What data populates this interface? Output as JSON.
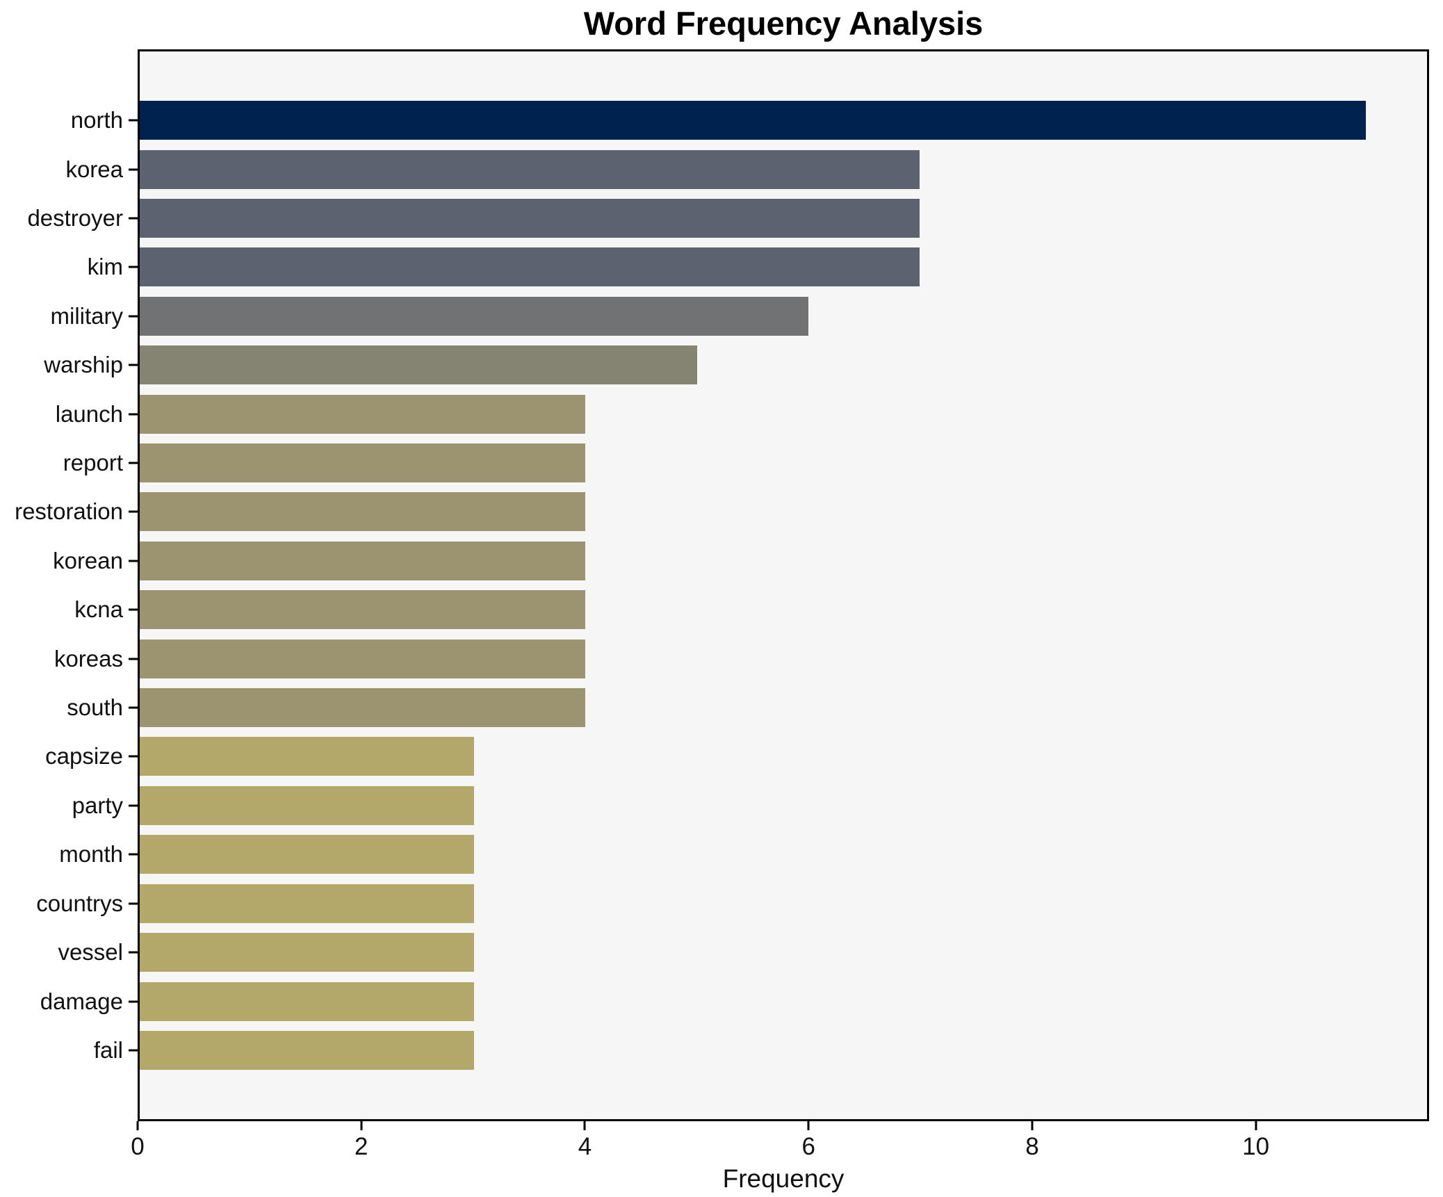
{
  "chart_data": {
    "type": "bar",
    "orientation": "horizontal",
    "title": "Word Frequency Analysis",
    "xlabel": "Frequency",
    "ylabel": "",
    "categories": [
      "north",
      "korea",
      "destroyer",
      "kim",
      "military",
      "warship",
      "launch",
      "report",
      "restoration",
      "korean",
      "kcna",
      "koreas",
      "south",
      "capsize",
      "party",
      "month",
      "countrys",
      "vessel",
      "damage",
      "fail"
    ],
    "values": [
      11,
      7,
      7,
      7,
      6,
      5,
      4,
      4,
      4,
      4,
      4,
      4,
      4,
      3,
      3,
      3,
      3,
      3,
      3,
      3
    ],
    "colors": [
      "#00224e",
      "#5d6270",
      "#5d6270",
      "#5d6270",
      "#717274",
      "#858371",
      "#9c9470",
      "#9c9470",
      "#9c9470",
      "#9c9470",
      "#9c9470",
      "#9c9470",
      "#9c9470",
      "#b3a76a",
      "#b3a76a",
      "#b3a76a",
      "#b3a76a",
      "#b3a76a",
      "#b3a76a",
      "#b3a76a"
    ],
    "xlim": [
      0,
      11.55
    ],
    "xticks": [
      0,
      2,
      4,
      6,
      8,
      10
    ],
    "grid": false,
    "legend": false,
    "plot_background": "#f5f6f5",
    "figure_background": "#ffffff",
    "spine_color": "#000000",
    "text_color": "#111111"
  }
}
